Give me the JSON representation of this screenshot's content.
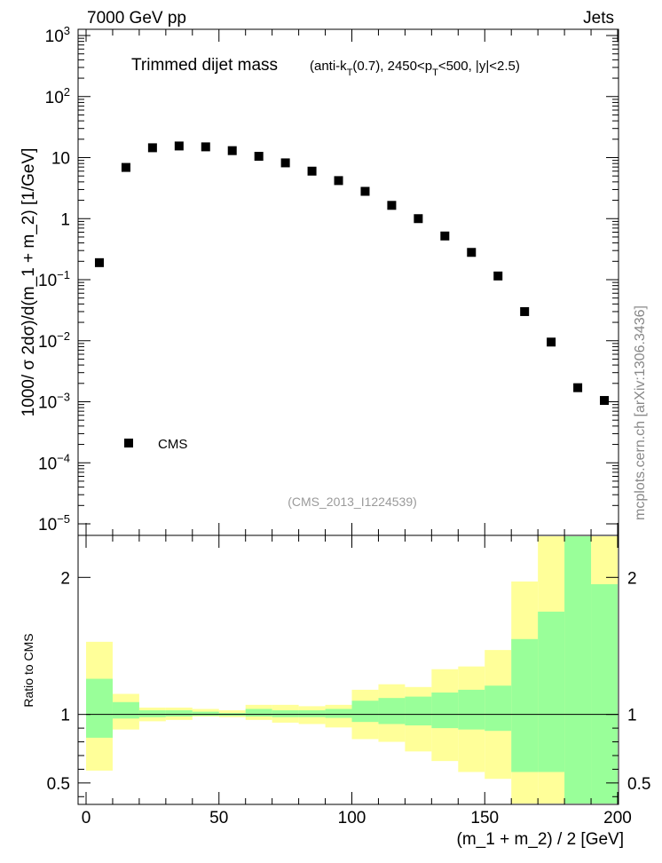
{
  "header": {
    "left": "7000 GeV pp",
    "right": "Jets"
  },
  "side_label": "mcplots.cern.ch [arXiv:1306.3436]",
  "chart_data": [
    {
      "type": "scatter",
      "title": "Trimmed dijet mass",
      "subtitle": {
        "pre": "(anti-k",
        "sub1": "T",
        "mid": "(0.7), 2450<p",
        "sub2": "T",
        "post": "<500, |y|<2.5)"
      },
      "ylabel": "1000/ σ 2dσ)/d(m_1 + m_2) [1/GeV]",
      "yscale": "log",
      "ylim_exp": [
        -5,
        3
      ],
      "y_ticks": [
        {
          "label": "10",
          "sup": "3",
          "exp": 3
        },
        {
          "label": "10",
          "sup": "2",
          "exp": 2
        },
        {
          "label": "10",
          "sup": "",
          "exp": 1
        },
        {
          "label": "1",
          "sup": "",
          "exp": 0
        },
        {
          "label": "10",
          "sup": "−1",
          "exp": -1
        },
        {
          "label": "10",
          "sup": "−2",
          "exp": -2
        },
        {
          "label": "10",
          "sup": "−3",
          "exp": -3
        },
        {
          "label": "10",
          "sup": "−4",
          "exp": -4
        },
        {
          "label": "10",
          "sup": "−5",
          "exp": -5
        }
      ],
      "xlim": [
        0,
        200
      ],
      "legend": {
        "label": "CMS",
        "placement": "bottom-left"
      },
      "analysis_label": "(CMS_2013_I1224539)",
      "series": [
        {
          "name": "CMS",
          "color": "#000000",
          "x": [
            5,
            15,
            25,
            35,
            45,
            55,
            65,
            75,
            85,
            95,
            105,
            115,
            125,
            135,
            145,
            155,
            165,
            175,
            185,
            195
          ],
          "y": [
            0.19,
            6.9,
            14.5,
            15.5,
            15.0,
            13.0,
            10.5,
            8.2,
            6.0,
            4.2,
            2.8,
            1.65,
            1.0,
            0.52,
            0.28,
            0.115,
            0.03,
            0.0095,
            0.0017,
            0.00105
          ]
        }
      ]
    },
    {
      "type": "area",
      "ylabel": "Ratio to CMS",
      "xlabel": "(m_1 + m_2) / 2 [GeV]",
      "xlim": [
        0,
        200
      ],
      "ylim": [
        0.35,
        2.3
      ],
      "x_ticks": [
        0,
        50,
        100,
        150,
        200
      ],
      "y_ticks": [
        0.5,
        1,
        2
      ],
      "reference_line": 1,
      "bins": [
        0,
        10,
        20,
        30,
        40,
        50,
        60,
        70,
        80,
        90,
        100,
        110,
        120,
        130,
        140,
        150,
        160,
        170,
        180,
        190,
        200
      ],
      "colors": {
        "outer_band": "#ffff99",
        "inner_band": "#99ff99",
        "line": "#000000"
      },
      "inner_band": {
        "lo": [
          0.83,
          0.97,
          0.98,
          0.985,
          0.99,
          0.99,
          0.985,
          0.98,
          0.98,
          0.975,
          0.945,
          0.93,
          0.92,
          0.9,
          0.89,
          0.88,
          0.58,
          0.58,
          0.35,
          0.35
        ],
        "hi": [
          1.26,
          1.09,
          1.03,
          1.03,
          1.02,
          1.01,
          1.04,
          1.03,
          1.03,
          1.04,
          1.1,
          1.12,
          1.13,
          1.16,
          1.18,
          1.21,
          1.55,
          1.75,
          2.3,
          1.95
        ]
      },
      "outer_band": {
        "lo": [
          0.59,
          0.89,
          0.95,
          0.96,
          0.985,
          0.98,
          0.96,
          0.94,
          0.93,
          0.905,
          0.82,
          0.8,
          0.73,
          0.66,
          0.58,
          0.53,
          0.35,
          0.35,
          0.35,
          0.35
        ],
        "hi": [
          1.53,
          1.15,
          1.05,
          1.05,
          1.04,
          1.03,
          1.07,
          1.07,
          1.06,
          1.07,
          1.18,
          1.22,
          1.2,
          1.33,
          1.35,
          1.47,
          1.97,
          2.3,
          2.3,
          2.3
        ]
      }
    }
  ]
}
